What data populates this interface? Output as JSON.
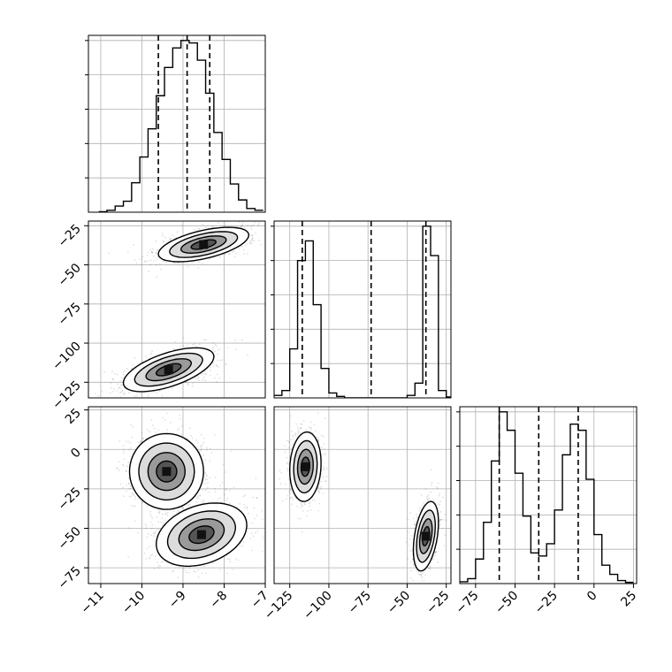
{
  "chart_data": {
    "type": "corner",
    "grid": true,
    "colors": {
      "line": "#000000",
      "grid": "#b0b0b0",
      "scatter": "#000000"
    },
    "params": [
      {
        "ticks": [
          -11,
          -10,
          -9,
          -8,
          -7
        ],
        "tick_labels": [
          "−11",
          "−10",
          "−9",
          "−8",
          "−7"
        ],
        "range": [
          -11.3,
          -7
        ]
      },
      {
        "ticks": [
          -125,
          -100,
          -75,
          -50,
          -25
        ],
        "tick_labels": [
          "−125",
          "−100",
          "−75",
          "−50",
          "−25"
        ],
        "range": [
          -135,
          -22
        ]
      },
      {
        "ticks": [
          -75,
          -50,
          -25,
          0,
          25
        ],
        "tick_labels": [
          "−75",
          "−50",
          "−25",
          "0",
          "25"
        ],
        "range": [
          -85,
          27
        ]
      }
    ],
    "histograms": [
      {
        "param": 0,
        "bin_edges": [
          -11.05,
          -10.85,
          -10.65,
          -10.45,
          -10.25,
          -10.05,
          -9.85,
          -9.65,
          -9.45,
          -9.25,
          -9.05,
          -8.85,
          -8.65,
          -8.45,
          -8.25,
          -8.05,
          -7.85,
          -7.65,
          -7.45,
          -7.25,
          -7.05
        ],
        "counts": [
          0.2,
          0.8,
          2.5,
          4.5,
          12,
          22.5,
          34,
          47.5,
          59,
          67,
          70,
          69,
          62,
          48.5,
          32.5,
          21.5,
          11.5,
          5,
          1.5,
          0.8
        ],
        "quantiles": [
          -9.6,
          -8.9,
          -8.35
        ]
      },
      {
        "param": 1,
        "bin_edges": [
          -135,
          -130,
          -125,
          -120,
          -115,
          -110,
          -105,
          -100,
          -95,
          -90,
          -85,
          -80,
          -75,
          -70,
          -65,
          -60,
          -55,
          -50,
          -45,
          -40,
          -35,
          -30,
          -25,
          -20
        ],
        "counts": [
          0.5,
          1.5,
          10,
          28,
          32,
          19,
          6,
          1,
          0.3,
          0,
          0,
          0,
          0,
          0,
          0,
          0,
          0,
          0.5,
          3,
          35,
          29,
          1.5,
          0.2
        ],
        "quantiles": [
          -117,
          -73,
          -38
        ]
      },
      {
        "param": 2,
        "bin_edges": [
          -85,
          -80,
          -75,
          -70,
          -65,
          -60,
          -55,
          -50,
          -45,
          -40,
          -35,
          -30,
          -25,
          -20,
          -15,
          -10,
          -5,
          0,
          5,
          10,
          15,
          20,
          25
        ],
        "counts": [
          0.3,
          0.8,
          4,
          10,
          20,
          28,
          25,
          18,
          11,
          5,
          4.5,
          6.5,
          12,
          21,
          26,
          25,
          17,
          8,
          3,
          1.5,
          0.5,
          0.2
        ],
        "quantiles": [
          -60,
          -35,
          -10
        ]
      }
    ],
    "panels": [
      {
        "xparam": 0,
        "yparam": 1,
        "modes": [
          {
            "center": [
              -8.5,
              -37
            ],
            "spread": [
              0.55,
              5.5
            ],
            "rho": 0.55,
            "weight": 0.5
          },
          {
            "center": [
              -9.35,
              -117
            ],
            "spread": [
              0.55,
              7
            ],
            "rho": 0.6,
            "weight": 0.5
          }
        ]
      },
      {
        "xparam": 0,
        "yparam": 2,
        "modes": [
          {
            "center": [
              -9.4,
              -14
            ],
            "spread": [
              0.45,
              12
            ],
            "rho": 0.0,
            "weight": 0.5
          },
          {
            "center": [
              -8.55,
              -54
            ],
            "spread": [
              0.55,
              10
            ],
            "rho": 0.3,
            "weight": 0.5
          }
        ]
      },
      {
        "xparam": 1,
        "yparam": 2,
        "modes": [
          {
            "center": [
              -115,
              -11
            ],
            "spread": [
              5,
              11
            ],
            "rho": 0.1,
            "weight": 0.5
          },
          {
            "center": [
              -38,
              -55
            ],
            "spread": [
              4,
              11
            ],
            "rho": 0.4,
            "weight": 0.5
          }
        ]
      }
    ]
  }
}
